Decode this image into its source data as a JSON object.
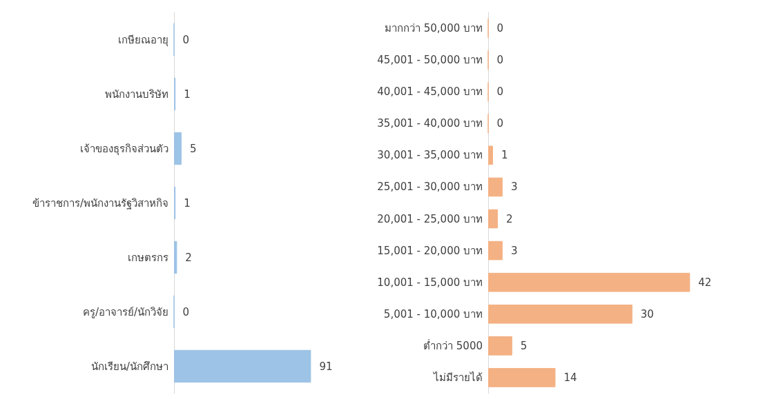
{
  "chart_data": [
    {
      "type": "bar",
      "orientation": "horizontal",
      "categories": [
        "เกษียณอายุ",
        "พนักงานบริษัท",
        "เจ้าของธุรกิจส่วนตัว",
        "ข้าราชการ/พนักงานรัฐวิสาหกิจ",
        "เกษตรกร",
        "ครู/อาจารย์/นักวิจัย",
        "นักเรียน/นักศึกษา"
      ],
      "values": [
        0,
        1,
        5,
        1,
        2,
        0,
        91
      ],
      "color": "#9dc3e6",
      "data_labels": true
    },
    {
      "type": "bar",
      "orientation": "horizontal",
      "categories": [
        "มากกว่า 50,000 บาท",
        "45,001 - 50,000 บาท",
        "40,001 - 45,000 บาท",
        "35,001 - 40,000 บาท",
        "30,001 - 35,000 บาท",
        "25,001 - 30,000 บาท",
        "20,001 - 25,000 บาท",
        "15,001 - 20,000 บาท",
        "10,001 - 15,000 บาท",
        "5,001 - 10,000 บาท",
        "ต่ำกว่า 5000",
        "ไม่มีรายได้"
      ],
      "values": [
        0,
        0,
        0,
        0,
        1,
        3,
        2,
        3,
        42,
        30,
        5,
        14
      ],
      "color": "#f4b183",
      "data_labels": true
    }
  ]
}
